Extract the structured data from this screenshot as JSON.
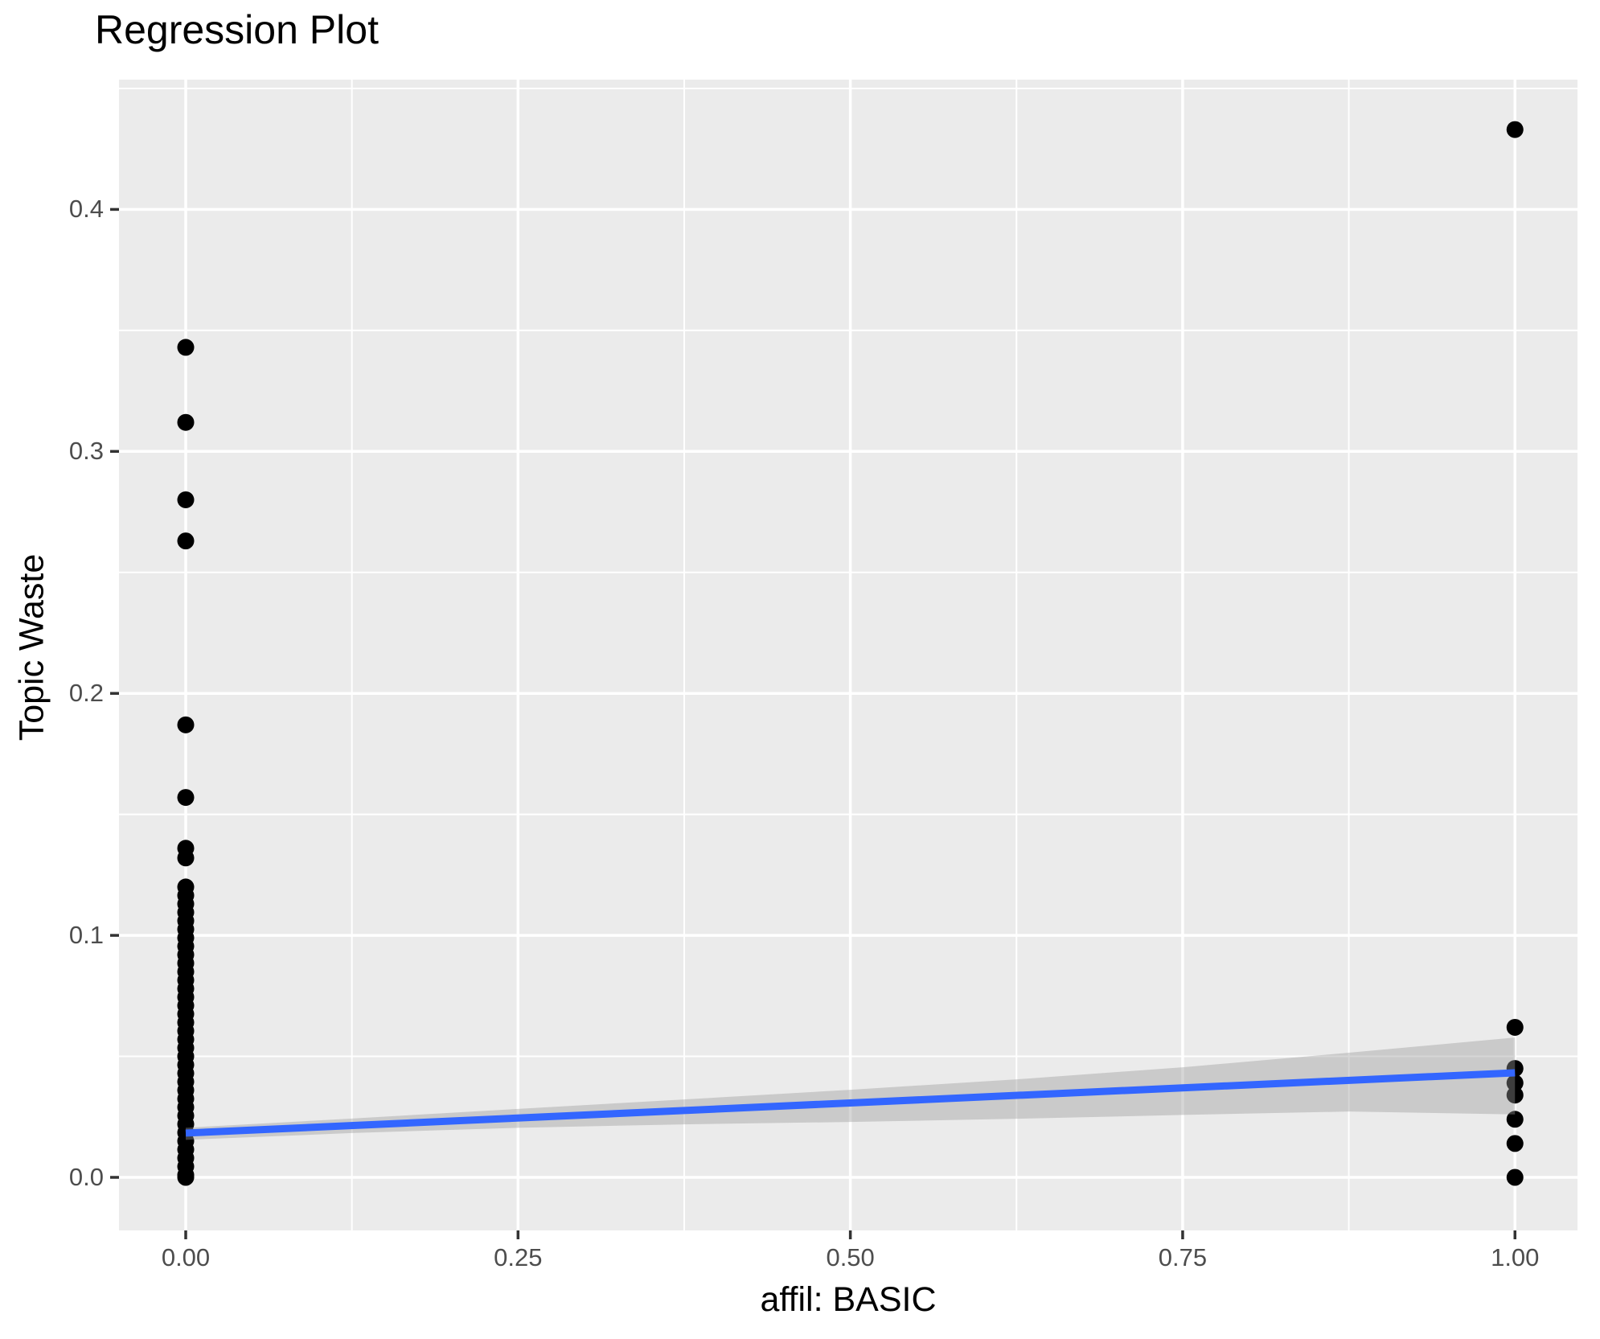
{
  "chart_data": {
    "type": "scatter",
    "title": "Regression Plot",
    "xlabel": "affil: BASIC",
    "ylabel": "Topic Waste",
    "legend": "none",
    "grid": "on",
    "xlim": [
      -0.0502,
      1.0472
    ],
    "ylim": [
      -0.0222,
      0.4536
    ],
    "x_ticks": {
      "values": [
        0,
        0.25,
        0.5,
        0.75,
        1
      ],
      "labels": [
        "0.00",
        "0.25",
        "0.50",
        "0.75",
        "1.00"
      ]
    },
    "y_ticks": {
      "values": [
        0,
        0.1,
        0.2,
        0.3,
        0.4
      ],
      "labels": [
        "0.0",
        "0.1",
        "0.2",
        "0.3",
        "0.4"
      ]
    },
    "x_minor": [
      0.125,
      0.375,
      0.625,
      0.875
    ],
    "y_minor": [
      0.05,
      0.15,
      0.25,
      0.35,
      0.45
    ],
    "series": [
      {
        "name": "affil-0-points",
        "x": 0,
        "y": [
          0.343,
          0.312,
          0.28,
          0.263,
          0.187,
          0.157,
          0.136,
          0.132,
          0.12,
          0.1165,
          0.113,
          0.1095,
          0.106,
          0.1025,
          0.099,
          0.0955,
          0.092,
          0.0885,
          0.085,
          0.0815,
          0.078,
          0.0745,
          0.071,
          0.0675,
          0.064,
          0.0605,
          0.057,
          0.0535,
          0.05,
          0.0465,
          0.043,
          0.0395,
          0.036,
          0.0325,
          0.029,
          0.0255,
          0.022,
          0.0185,
          0.015,
          0.0115,
          0.008,
          0.0045,
          0.001,
          0.0
        ]
      },
      {
        "name": "affil-1-points",
        "x": 1,
        "y": [
          0.433,
          0.062,
          0.045,
          0.039,
          0.034,
          0.024,
          0.014,
          0.0
        ]
      }
    ],
    "regression_line": {
      "x": [
        0,
        1
      ],
      "y": [
        0.0183,
        0.0432
      ]
    },
    "confidence_ribbon": {
      "x": [
        0,
        0.125,
        0.25,
        0.375,
        0.5,
        0.625,
        0.75,
        0.875,
        1
      ],
      "upper": [
        0.0205,
        0.0243,
        0.0283,
        0.0322,
        0.0362,
        0.0405,
        0.0455,
        0.0515,
        0.0578
      ],
      "lower": [
        0.0155,
        0.0183,
        0.0205,
        0.0219,
        0.0229,
        0.0242,
        0.0258,
        0.0272,
        0.026
      ]
    },
    "colors": {
      "panel_background": "#EBEBEB",
      "gridline": "#FFFFFF",
      "point": "#000000",
      "regression_line": "#3366FF",
      "ribbon_fill": "#999999",
      "ribbon_opacity": 0.4,
      "tick_mark": "#333333",
      "tick_text": "#4D4D4D",
      "title_text": "#000000"
    }
  }
}
